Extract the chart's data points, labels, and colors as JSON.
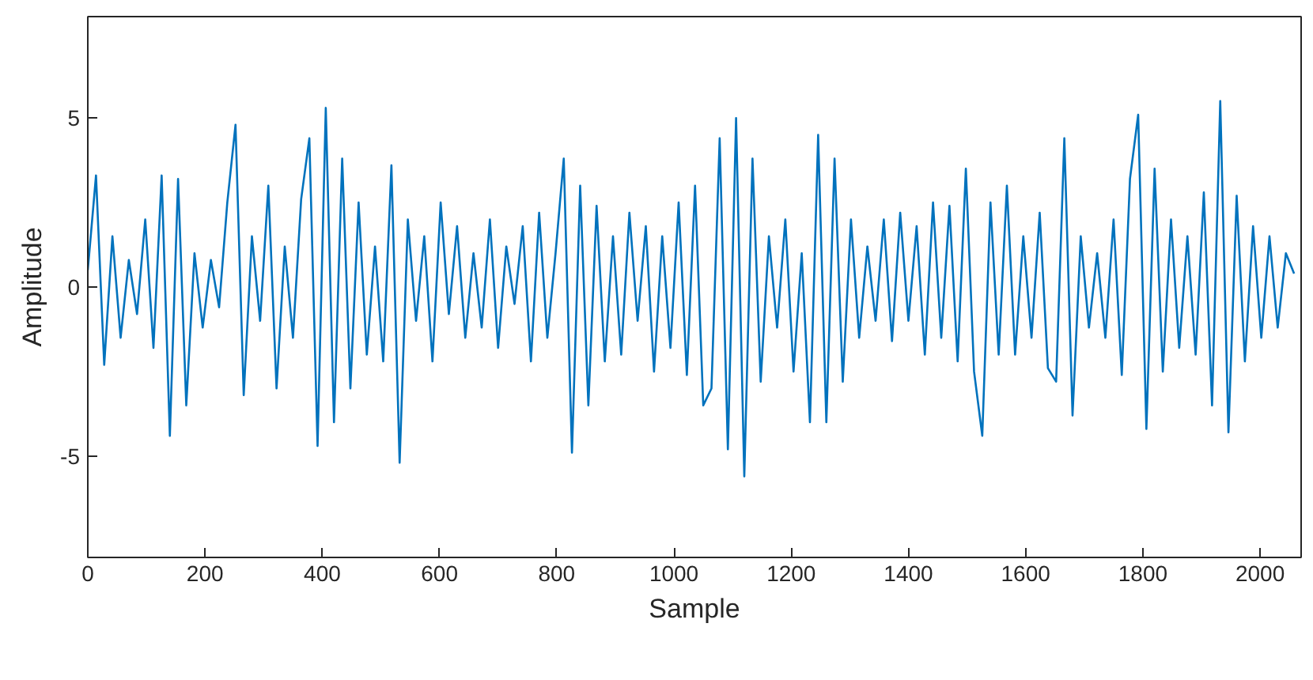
{
  "chart_data": {
    "type": "line",
    "xlabel": "Sample",
    "ylabel": "Amplitude",
    "xlim": [
      0,
      2070
    ],
    "ylim": [
      -8,
      8
    ],
    "xticks": [
      0,
      200,
      400,
      600,
      800,
      1000,
      1200,
      1400,
      1600,
      1800,
      2000
    ],
    "yticks": [
      -5,
      0,
      5
    ],
    "grid": false,
    "x": [
      0,
      14,
      28,
      42,
      56,
      70,
      84,
      98,
      112,
      126,
      140,
      154,
      168,
      182,
      196,
      210,
      224,
      238,
      252,
      266,
      280,
      294,
      308,
      322,
      336,
      350,
      364,
      378,
      392,
      406,
      420,
      434,
      448,
      462,
      476,
      490,
      504,
      518,
      532,
      546,
      560,
      574,
      588,
      602,
      616,
      630,
      644,
      658,
      672,
      686,
      700,
      714,
      728,
      742,
      756,
      770,
      784,
      798,
      812,
      826,
      840,
      854,
      868,
      882,
      896,
      910,
      924,
      938,
      952,
      966,
      980,
      994,
      1008,
      1022,
      1036,
      1050,
      1064,
      1078,
      1092,
      1106,
      1120,
      1134,
      1148,
      1162,
      1176,
      1190,
      1204,
      1218,
      1232,
      1246,
      1260,
      1274,
      1288,
      1302,
      1316,
      1330,
      1344,
      1358,
      1372,
      1386,
      1400,
      1414,
      1428,
      1442,
      1456,
      1470,
      1484,
      1498,
      1512,
      1526,
      1540,
      1554,
      1568,
      1582,
      1596,
      1610,
      1624,
      1638,
      1652,
      1666,
      1680,
      1694,
      1708,
      1722,
      1736,
      1750,
      1764,
      1778,
      1792,
      1806,
      1820,
      1834,
      1848,
      1862,
      1876,
      1890,
      1904,
      1918,
      1932,
      1946,
      1960,
      1974,
      1988,
      2002,
      2016,
      2030,
      2044,
      2058
    ],
    "series": [
      {
        "color": "#0072bd",
        "values": [
          0.5,
          3.3,
          -2.3,
          1.5,
          -1.5,
          0.8,
          -0.8,
          2.0,
          -1.8,
          3.3,
          -4.4,
          3.2,
          -3.5,
          1.0,
          -1.2,
          0.8,
          -0.6,
          2.5,
          4.8,
          -3.2,
          1.5,
          -1.0,
          3.0,
          -3.0,
          1.2,
          -1.5,
          2.6,
          4.4,
          -4.7,
          5.3,
          -4.0,
          3.8,
          -3.0,
          2.5,
          -2.0,
          1.2,
          -2.2,
          3.6,
          -5.2,
          2.0,
          -1.0,
          1.5,
          -2.2,
          2.5,
          -0.8,
          1.8,
          -1.5,
          1.0,
          -1.2,
          2.0,
          -1.8,
          1.2,
          -0.5,
          1.8,
          -2.2,
          2.2,
          -1.5,
          1.0,
          3.8,
          -4.9,
          3.0,
          -3.5,
          2.4,
          -2.2,
          1.5,
          -2.0,
          2.2,
          -1.0,
          1.8,
          -2.5,
          1.5,
          -1.8,
          2.5,
          -2.6,
          3.0,
          -3.5,
          -3.0,
          4.4,
          -4.8,
          5.0,
          -5.6,
          3.8,
          -2.8,
          1.5,
          -1.2,
          2.0,
          -2.5,
          1.0,
          -4.0,
          4.5,
          -4.0,
          3.8,
          -2.8,
          2.0,
          -1.5,
          1.2,
          -1.0,
          2.0,
          -1.6,
          2.2,
          -1.0,
          1.8,
          -2.0,
          2.5,
          -1.5,
          2.4,
          -2.2,
          3.5,
          -2.5,
          -4.4,
          2.5,
          -2.0,
          3.0,
          -2.0,
          1.5,
          -1.5,
          2.2,
          -2.4,
          -2.8,
          4.4,
          -3.8,
          1.5,
          -1.2,
          1.0,
          -1.5,
          2.0,
          -2.6,
          3.2,
          5.1,
          -4.2,
          3.5,
          -2.5,
          2.0,
          -1.8,
          1.5,
          -2.0,
          2.8,
          -3.5,
          5.5,
          -4.3,
          2.7,
          -2.2,
          1.8,
          -1.5,
          1.5,
          -1.2,
          1.0,
          0.4
        ]
      }
    ]
  }
}
